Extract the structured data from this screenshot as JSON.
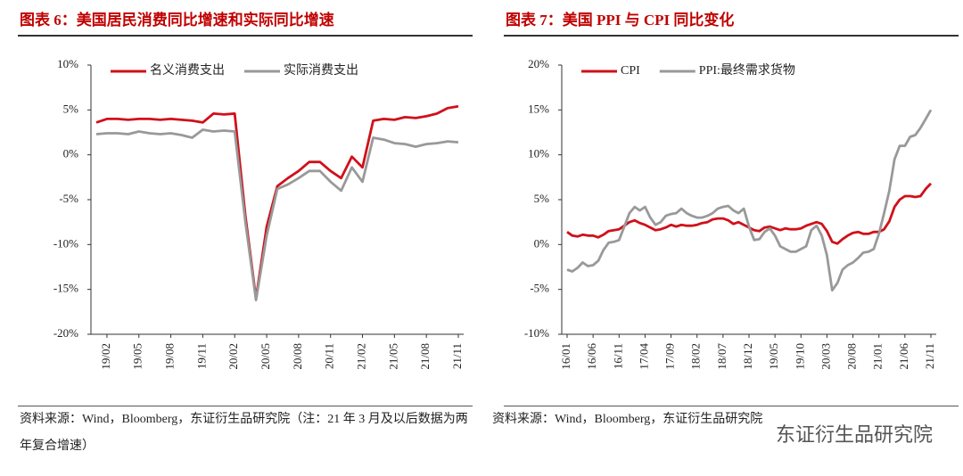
{
  "chart_data": [
    {
      "type": "line",
      "title": "图表 6：美国居民消费同比增速和实际同比增速",
      "categories": [
        null,
        "19/02",
        null,
        null,
        "19/05",
        null,
        null,
        "19/08",
        null,
        null,
        "19/11",
        null,
        null,
        "20/02",
        null,
        null,
        "20/05",
        null,
        null,
        "20/08",
        null,
        null,
        "20/11",
        null,
        null,
        "21/02",
        null,
        null,
        "21/05",
        null,
        null,
        "21/08",
        null,
        null,
        "21/11"
      ],
      "series": [
        {
          "name": "名义消费支出",
          "color": "#d0101a",
          "values": [
            3.6,
            4.0,
            4.0,
            3.9,
            4.0,
            4.0,
            3.9,
            4.0,
            3.9,
            3.8,
            3.6,
            4.6,
            4.5,
            4.6,
            -6.8,
            -16.0,
            -8.0,
            -3.5,
            -2.6,
            -1.8,
            -0.8,
            -0.8,
            -1.8,
            -2.6,
            -0.2,
            -1.4,
            3.8,
            4.0,
            3.9,
            4.2,
            4.1,
            4.3,
            4.6,
            5.2,
            5.4
          ]
        },
        {
          "name": "实际消费支出",
          "color": "#999999",
          "values": [
            2.3,
            2.4,
            2.4,
            2.3,
            2.6,
            2.4,
            2.3,
            2.4,
            2.2,
            1.9,
            2.8,
            2.6,
            2.7,
            2.6,
            -7.5,
            -16.2,
            -9.0,
            -3.8,
            -3.3,
            -2.6,
            -1.8,
            -1.8,
            -3.0,
            -4.0,
            -1.4,
            -3.0,
            1.9,
            1.7,
            1.3,
            1.2,
            0.9,
            1.2,
            1.3,
            1.5,
            1.4
          ]
        }
      ],
      "ylim": [
        -20,
        10
      ],
      "yticks": [
        {
          "value": -20,
          "label": "-20%"
        },
        {
          "value": -15,
          "label": "-15%"
        },
        {
          "value": -10,
          "label": "-10%"
        },
        {
          "value": -5,
          "label": "-5%"
        },
        {
          "value": 0,
          "label": "0%"
        },
        {
          "value": 5,
          "label": "5%"
        },
        {
          "value": 10,
          "label": "10%"
        }
      ],
      "note": "资料来源：Wind，Bloomberg，东证衍生品研究院（注：21 年 3 月及以后数据为两年复合增速）"
    },
    {
      "type": "line",
      "title": "图表 7：美国 PPI 与 CPI 同比变化",
      "categories": [
        "16/01",
        null,
        null,
        null,
        null,
        "16/06",
        null,
        null,
        null,
        null,
        "16/11",
        null,
        null,
        null,
        null,
        "17/04",
        null,
        null,
        null,
        null,
        "17/09",
        null,
        null,
        null,
        null,
        "18/02",
        null,
        null,
        null,
        null,
        "18/07",
        null,
        null,
        null,
        null,
        "18/12",
        null,
        null,
        null,
        null,
        "19/05",
        null,
        null,
        null,
        null,
        "19/10",
        null,
        null,
        null,
        null,
        "20/03",
        null,
        null,
        null,
        null,
        "20/08",
        null,
        null,
        null,
        null,
        "21/01",
        null,
        null,
        null,
        null,
        "21/06",
        null,
        null,
        null,
        null,
        "21/11"
      ],
      "series": [
        {
          "name": "CPI",
          "color": "#d0101a",
          "values": [
            1.4,
            1.0,
            0.9,
            1.1,
            1.0,
            1.0,
            0.8,
            1.1,
            1.5,
            1.6,
            1.7,
            2.1,
            2.5,
            2.7,
            2.4,
            2.2,
            1.9,
            1.6,
            1.7,
            1.9,
            2.2,
            2.0,
            2.2,
            2.1,
            2.1,
            2.2,
            2.4,
            2.5,
            2.8,
            2.9,
            2.9,
            2.7,
            2.3,
            2.5,
            2.2,
            1.9,
            1.6,
            1.5,
            1.9,
            2.0,
            1.8,
            1.6,
            1.8,
            1.7,
            1.7,
            1.8,
            2.1,
            2.3,
            2.5,
            2.3,
            1.5,
            0.3,
            0.1,
            0.6,
            1.0,
            1.3,
            1.4,
            1.2,
            1.2,
            1.4,
            1.4,
            1.7,
            2.6,
            4.2,
            5.0,
            5.4,
            5.4,
            5.3,
            5.4,
            6.2,
            6.8
          ]
        },
        {
          "name": "PPI:最终需求货物",
          "color": "#999999",
          "values": [
            -2.8,
            -3.0,
            -2.6,
            -2.0,
            -2.4,
            -2.3,
            -1.8,
            -0.6,
            0.2,
            0.3,
            0.5,
            2.0,
            3.5,
            4.2,
            3.8,
            4.2,
            3.0,
            2.2,
            2.5,
            3.2,
            3.4,
            3.5,
            4.0,
            3.5,
            3.2,
            3.0,
            3.0,
            3.2,
            3.5,
            4.0,
            4.2,
            4.3,
            3.8,
            3.5,
            4.0,
            2.0,
            0.5,
            0.6,
            1.4,
            1.8,
            1.0,
            -0.2,
            -0.5,
            -0.8,
            -0.8,
            -0.5,
            -0.2,
            1.6,
            2.1,
            1.0,
            -1.2,
            -5.1,
            -4.3,
            -2.8,
            -2.3,
            -2.0,
            -1.5,
            -0.9,
            -0.8,
            -0.5,
            1.2,
            3.5,
            6.0,
            9.5,
            11.0,
            11.0,
            12.0,
            12.2,
            13.0,
            14.0,
            15.0
          ]
        }
      ],
      "ylim": [
        -10,
        20
      ],
      "yticks": [
        {
          "value": -10,
          "label": "-10%"
        },
        {
          "value": -5,
          "label": "-5%"
        },
        {
          "value": 0,
          "label": "0%"
        },
        {
          "value": 5,
          "label": "5%"
        },
        {
          "value": 10,
          "label": "10%"
        },
        {
          "value": 15,
          "label": "15%"
        },
        {
          "value": 20,
          "label": "20%"
        }
      ],
      "note": "资料来源：Wind，Bloomberg，东证衍生品研究院"
    }
  ],
  "watermark": "东证衍生品研究院"
}
